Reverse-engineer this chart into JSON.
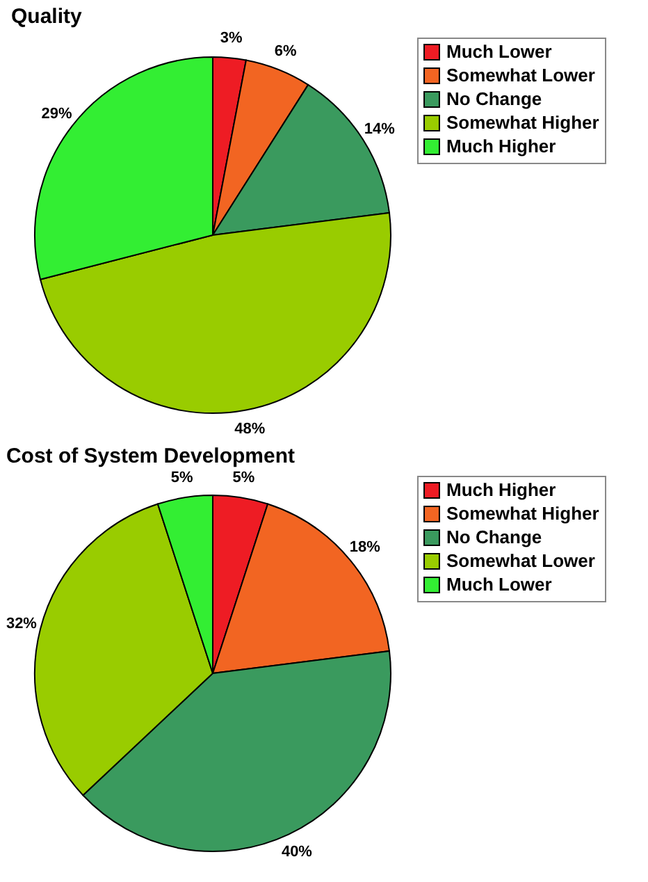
{
  "chart_data": [
    {
      "type": "pie",
      "title": "Quality",
      "categories": [
        "Much Lower",
        "Somewhat Lower",
        "No Change",
        "Somewhat Higher",
        "Much Higher"
      ],
      "values": [
        3,
        6,
        14,
        48,
        29
      ],
      "value_labels": [
        "3%",
        "6%",
        "14%",
        "48%",
        "29%"
      ],
      "colors": [
        "#ee1c24",
        "#f26522",
        "#3a9a5e",
        "#99cc00",
        "#33ee33"
      ],
      "legend": "right"
    },
    {
      "type": "pie",
      "title": "Cost of System Development",
      "categories": [
        "Much Higher",
        "Somewhat Higher",
        "No Change",
        "Somewhat Lower",
        "Much Lower"
      ],
      "values": [
        5,
        18,
        40,
        32,
        5
      ],
      "value_labels": [
        "5%",
        "18%",
        "40%",
        "32%",
        "5%"
      ],
      "colors": [
        "#ee1c24",
        "#f26522",
        "#3a9a5e",
        "#99cc00",
        "#33ee33"
      ],
      "legend": "right"
    }
  ]
}
